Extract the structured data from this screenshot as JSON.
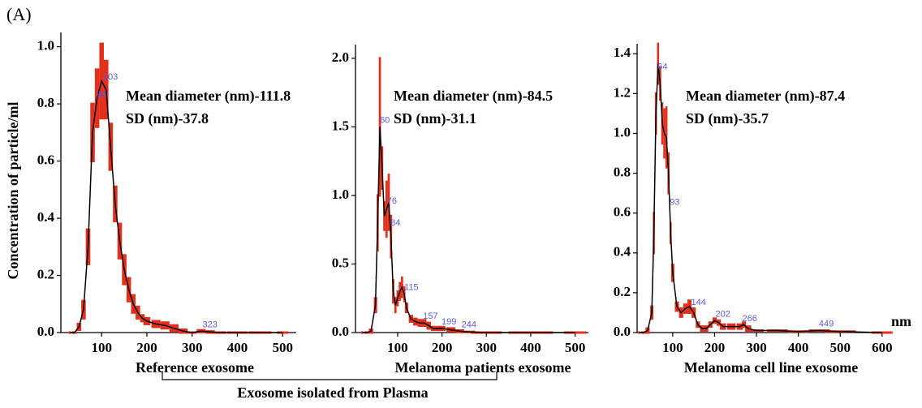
{
  "figure_label": "(A)",
  "group_label": "Exosome isolated from Plasma",
  "chart_data": [
    {
      "type": "line",
      "xlabel": "Reference exosome",
      "ylabel": "Concentration of particle/ml",
      "annotations": [
        "Mean diameter (nm)-111.8",
        "SD (nm)-37.8"
      ],
      "x": [
        30,
        40,
        50,
        60,
        70,
        80,
        90,
        100,
        110,
        120,
        130,
        140,
        150,
        160,
        170,
        180,
        190,
        200,
        220,
        240,
        260,
        280,
        300,
        320,
        340,
        360,
        400,
        450,
        500
      ],
      "series": [
        {
          "color": "#000000",
          "error_color": "#e3301c",
          "values": [
            0,
            0,
            0.02,
            0.08,
            0.3,
            0.7,
            0.82,
            0.88,
            0.85,
            0.65,
            0.45,
            0.32,
            0.22,
            0.15,
            0.1,
            0.07,
            0.05,
            0.04,
            0.03,
            0.025,
            0.015,
            0.005,
            0,
            0.005,
            0.002,
            0,
            0,
            0,
            0
          ],
          "errors": [
            0,
            0,
            0.01,
            0.03,
            0.06,
            0.1,
            0.1,
            0.13,
            0.1,
            0.08,
            0.06,
            0.06,
            0.05,
            0.04,
            0.03,
            0.02,
            0.01,
            0.01,
            0.01,
            0.01,
            0.01,
            0.005,
            0,
            0.003,
            0.002,
            0,
            0,
            0,
            0
          ]
        }
      ],
      "peaks": [
        103,
        89,
        323
      ],
      "peak_color": "#5a5ae6",
      "xlim": [
        10,
        530
      ],
      "xticks": [
        100,
        200,
        300,
        400,
        500
      ],
      "ylim": [
        0,
        1.05
      ],
      "yticks": [
        {
          "value": 0,
          "label": "0.0"
        },
        0.2,
        0.4,
        0.6,
        0.8,
        {
          "value": 1,
          "label": "1.0"
        }
      ]
    },
    {
      "type": "line",
      "xlabel": "Melanoma patients exosome",
      "annotations": [
        "Mean diameter (nm)-84.5",
        "SD (nm)-31.1"
      ],
      "x": [
        20,
        30,
        40,
        50,
        55,
        60,
        65,
        70,
        75,
        80,
        85,
        90,
        95,
        100,
        105,
        110,
        115,
        120,
        130,
        140,
        150,
        160,
        170,
        180,
        190,
        200,
        220,
        240,
        260,
        300,
        400,
        500
      ],
      "series": [
        {
          "color": "#000000",
          "error_color": "#e3301c",
          "values": [
            0,
            0,
            0.01,
            0.2,
            0.8,
            1.5,
            1.2,
            0.85,
            0.9,
            0.95,
            0.7,
            0.3,
            0.2,
            0.25,
            0.3,
            0.33,
            0.28,
            0.18,
            0.1,
            0.08,
            0.07,
            0.07,
            0.05,
            0.03,
            0.03,
            0.03,
            0.02,
            0.01,
            0.005,
            0,
            0,
            0
          ],
          "errors": [
            0,
            0,
            0.01,
            0.05,
            0.2,
            0.5,
            0.15,
            0.1,
            0.2,
            0.2,
            0.15,
            0.08,
            0.05,
            0.05,
            0.06,
            0.07,
            0.05,
            0.03,
            0.02,
            0.02,
            0.02,
            0.02,
            0.02,
            0.01,
            0.01,
            0.01,
            0.01,
            0.005,
            0,
            0,
            0,
            0
          ]
        }
      ],
      "peaks": [
        60,
        84,
        76,
        115,
        157,
        199,
        244
      ],
      "peak_color": "#5a5ae6",
      "xlim": [
        5,
        530
      ],
      "xticks": [
        100,
        200,
        300,
        400,
        500
      ],
      "ylim": [
        0,
        2.1
      ],
      "yticks": [
        {
          "value": 0,
          "label": "0.0"
        },
        0.5,
        {
          "value": 1,
          "label": "1.0"
        },
        1.5,
        {
          "value": 2,
          "label": "2.0"
        }
      ]
    },
    {
      "type": "line",
      "xlabel": "Melanoma cell line exosome",
      "x_unit_label": "nm",
      "annotations": [
        "Mean diameter (nm)-87.4",
        "SD (nm)-35.7"
      ],
      "x": [
        20,
        30,
        40,
        50,
        55,
        60,
        65,
        70,
        75,
        80,
        85,
        90,
        95,
        100,
        110,
        120,
        130,
        140,
        150,
        160,
        170,
        180,
        190,
        200,
        210,
        220,
        240,
        260,
        270,
        280,
        300,
        350,
        400,
        450,
        500,
        600
      ],
      "series": [
        {
          "color": "#000000",
          "error_color": "#e3301c",
          "values": [
            0,
            0,
            0.01,
            0.1,
            0.5,
            1.1,
            1.35,
            1.25,
            1.05,
            1,
            0.98,
            0.8,
            0.5,
            0.3,
            0.13,
            0.1,
            0.12,
            0.13,
            0.1,
            0.04,
            0.02,
            0.02,
            0.04,
            0.06,
            0.05,
            0.03,
            0.03,
            0.03,
            0.04,
            0.02,
            0.01,
            0.01,
            0.005,
            0.01,
            0.005,
            0
          ],
          "errors": [
            0,
            0,
            0.01,
            0.03,
            0.1,
            0.1,
            0.1,
            0.08,
            0.1,
            0.12,
            0.15,
            0.1,
            0.05,
            0.04,
            0.02,
            0.02,
            0.02,
            0.03,
            0.02,
            0.01,
            0.01,
            0.01,
            0.01,
            0.01,
            0.01,
            0.01,
            0.01,
            0.01,
            0.01,
            0.01,
            0,
            0,
            0,
            0,
            0,
            0
          ]
        }
      ],
      "peaks": [
        64,
        93,
        144,
        202,
        266,
        449
      ],
      "peak_color": "#5a5ae6",
      "xlim": [
        15,
        610
      ],
      "xticks": [
        100,
        200,
        300,
        400,
        500,
        600
      ],
      "ylim": [
        0,
        1.45
      ],
      "yticks": [
        {
          "value": 0,
          "label": "0.0"
        },
        0.2,
        0.4,
        0.6,
        0.8,
        {
          "value": 1,
          "label": "1.0"
        },
        1.2,
        1.4
      ]
    }
  ]
}
